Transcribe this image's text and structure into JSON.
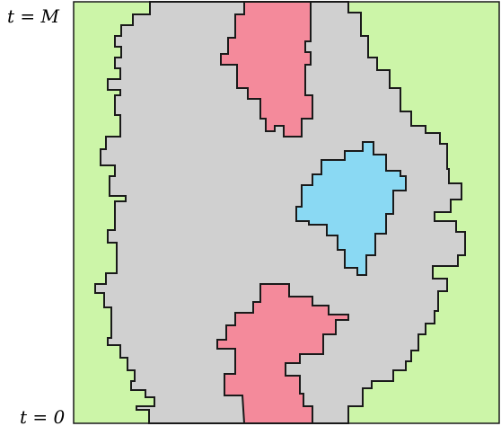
{
  "labels": {
    "top_var": "t",
    "top_eq": " = ",
    "top_val": "M",
    "bottom_var": "t",
    "bottom_eq": " = ",
    "bottom_val": "0"
  },
  "colors": {
    "background_region": "#ccf5a8",
    "main_region": "#d0d0d0",
    "pink_region": "#f48a9b",
    "blue_region": "#8ad9f3",
    "outline": "#1a1a1a"
  }
}
